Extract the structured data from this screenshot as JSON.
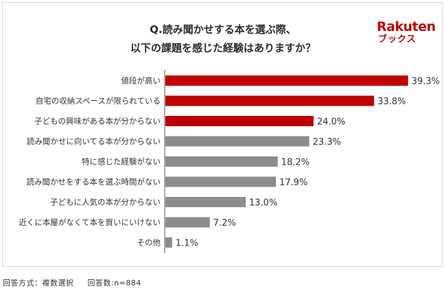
{
  "header": {
    "title_line1": "Q.読み聞かせする本を選ぶ際、",
    "title_line2": "以下の課題を感じた経験はありますか？"
  },
  "logo": {
    "main": "Rakuten",
    "sub": "ブックス"
  },
  "footer": {
    "method": "回答方式：複数選択",
    "respondents": "回答数:n=884"
  },
  "colors": {
    "highlight": "#bf0000",
    "normal": "#8c8c8c"
  },
  "chart_data": {
    "type": "bar",
    "orientation": "horizontal",
    "categories": [
      "値段が高い",
      "自宅の収納スペースが限られている",
      "子どもの興味がある本が分からない",
      "読み聞かせに向いてる本が分からない",
      "特に感じた経験がない",
      "読み聞かせをする本を選ぶ時間がない",
      "子どもに人気の本が分からない",
      "近くに本屋がなくて本を買いにいけない",
      "その他"
    ],
    "values": [
      39.3,
      33.8,
      24.0,
      23.3,
      18.2,
      17.9,
      13.0,
      7.2,
      1.1
    ],
    "value_labels": [
      "39.3%",
      "33.8%",
      "24.0%",
      "23.3%",
      "18.2%",
      "17.9%",
      "13.0%",
      "7.2%",
      "1.1%"
    ],
    "highlighted_count": 3,
    "xlim": [
      0,
      40
    ],
    "grid": false,
    "legend": "none"
  }
}
